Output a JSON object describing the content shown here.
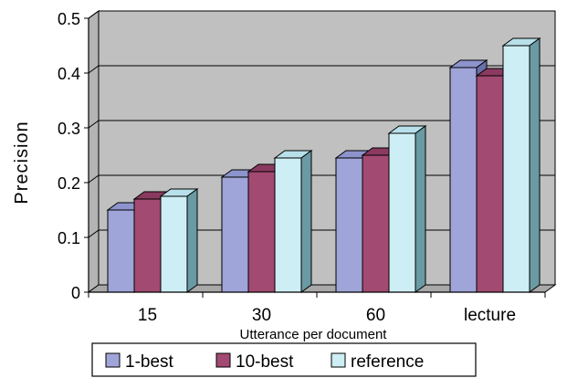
{
  "chart_data": {
    "type": "bar",
    "categories": [
      "15",
      "30",
      "60",
      "lecture"
    ],
    "series": [
      {
        "name": "1-best",
        "values": [
          0.15,
          0.21,
          0.245,
          0.41
        ],
        "color": "#9fa5d9",
        "side": "#6a70a8",
        "top": "#8d94cc"
      },
      {
        "name": "10-best",
        "values": [
          0.17,
          0.22,
          0.25,
          0.395
        ],
        "color": "#a34a72",
        "side": "#6e2848",
        "top": "#8a3a60"
      },
      {
        "name": "reference",
        "values": [
          0.175,
          0.245,
          0.29,
          0.45
        ],
        "color": "#cdeef5",
        "side": "#6a9aa4",
        "top": "#b8e0ea"
      }
    ],
    "xlabel": "Utterance per document",
    "ylabel": "Precision",
    "yticks": [
      "0",
      "0.1",
      "0.2",
      "0.3",
      "0.4",
      "0.5"
    ],
    "ylim": [
      0,
      0.5
    ],
    "grid": true,
    "legend": "bottom",
    "plot_bg": "#c0c0c0"
  }
}
